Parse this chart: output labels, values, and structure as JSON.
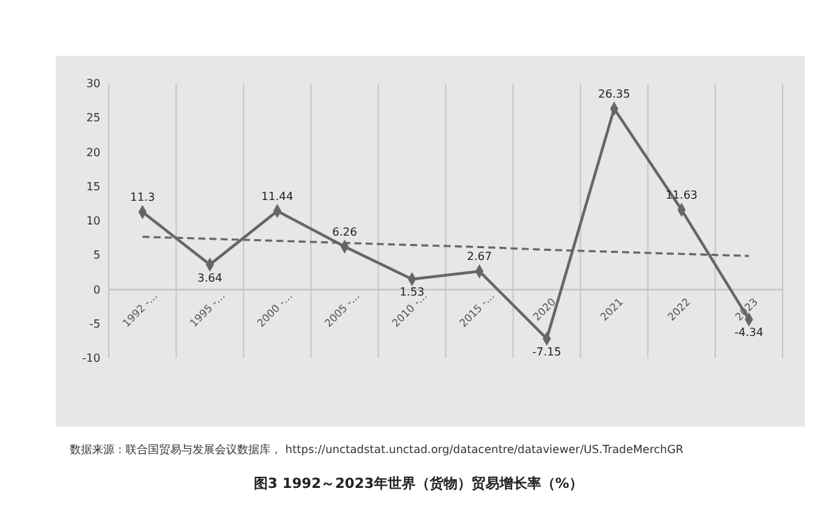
{
  "chart_data": {
    "type": "line",
    "title": "图3 1992～2023年世界（货物）贸易增长率（%）",
    "annotations": [
      "数据来源：联合国贸易与发展会议数据库， https://unctadstat.unctad.org/datacentre/dataviewer/US.TradeMerchGR"
    ],
    "categories": [
      "1992 -…",
      "1995 -…",
      "2000 -…",
      "2005 -…",
      "2010 -…",
      "2015 -…",
      "2020",
      "2021",
      "2022",
      "2023"
    ],
    "series": [
      {
        "color": "#666666",
        "values": [
          11.3,
          3.64,
          11.44,
          6.26,
          1.53,
          2.67,
          -7.15,
          26.35,
          11.63,
          -4.34
        ],
        "marker": "diamond",
        "data_labels": true
      },
      {
        "color": "#666666",
        "values": [
          7.7,
          7.4,
          7.1,
          6.8,
          6.5,
          6.2,
          5.8,
          5.5,
          5.2,
          4.9
        ],
        "line_style": "dashed",
        "marker": "none"
      }
    ],
    "ylim": [
      -10,
      30
    ],
    "yticks": [
      -10,
      -5,
      0,
      5,
      10,
      15,
      20,
      25,
      30
    ],
    "grid": "x"
  }
}
